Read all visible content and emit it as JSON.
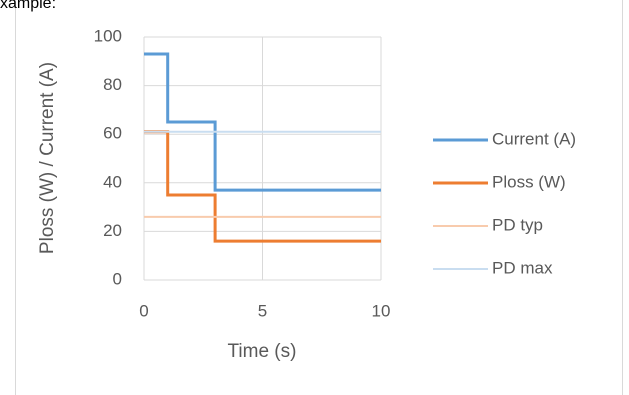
{
  "caption": "xample:",
  "chart_data": {
    "type": "line",
    "xlabel": "Time (s)",
    "ylabel": "Ploss (W) / Current (A)",
    "xlim": [
      0,
      10
    ],
    "xticks": [
      0,
      5,
      10
    ],
    "ylim": [
      0,
      100
    ],
    "yticks": [
      0,
      20,
      40,
      60,
      80,
      100
    ],
    "grid": true,
    "legend": "right",
    "series": [
      {
        "name": "Current (A)",
        "color": "#5b9bd5",
        "width": 3,
        "x": [
          0,
          1,
          1,
          3,
          3,
          10
        ],
        "values": [
          93,
          93,
          65,
          65,
          37,
          37
        ]
      },
      {
        "name": "Ploss (W)",
        "color": "#ed7d31",
        "width": 3,
        "x": [
          0,
          1,
          1,
          3,
          3,
          10
        ],
        "values": [
          61,
          61,
          35,
          35,
          16,
          16
        ]
      },
      {
        "name": "PD typ",
        "color": "#f8cbad",
        "width": 2,
        "x": [
          0,
          10
        ],
        "values": [
          26,
          26
        ]
      },
      {
        "name": "PD max",
        "color": "#c9ddf0",
        "width": 2,
        "x": [
          0,
          10
        ],
        "values": [
          61,
          61
        ]
      }
    ]
  }
}
